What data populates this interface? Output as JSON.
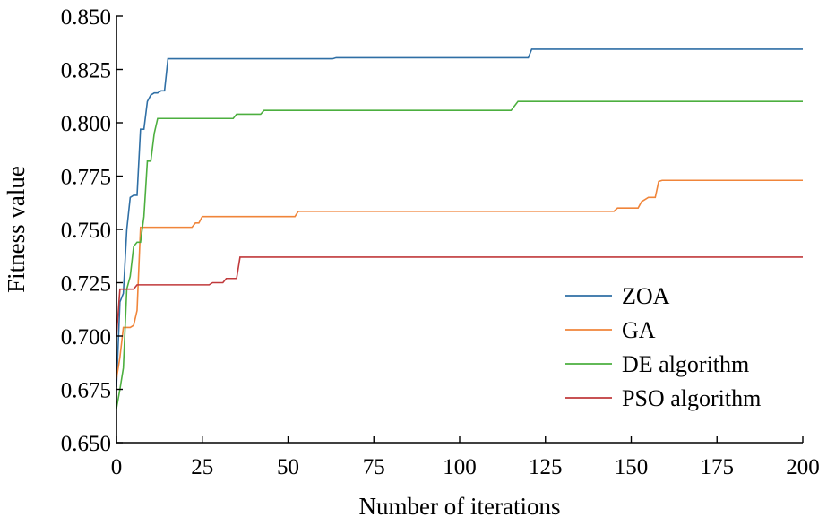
{
  "chart_data": {
    "type": "line",
    "title": "",
    "xlabel": "Number of iterations",
    "ylabel": "Fitness value",
    "xlim": [
      0,
      200
    ],
    "ylim": [
      0.65,
      0.85
    ],
    "xticks": [
      0,
      25,
      50,
      75,
      100,
      125,
      150,
      175,
      200
    ],
    "xtick_labels": [
      "0",
      "25",
      "50",
      "75",
      "100",
      "125",
      "150",
      "175",
      "200"
    ],
    "yticks": [
      0.65,
      0.675,
      0.7,
      0.725,
      0.75,
      0.775,
      0.8,
      0.825,
      0.85
    ],
    "ytick_labels": [
      "0.650",
      "0.675",
      "0.700",
      "0.725",
      "0.750",
      "0.775",
      "0.800",
      "0.825",
      "0.850"
    ],
    "grid": false,
    "legend_position": "bottom-right",
    "series": [
      {
        "name": "ZOA",
        "color": "#2f6fa5",
        "points": [
          [
            0,
            0.676
          ],
          [
            1,
            0.716
          ],
          [
            2,
            0.72
          ],
          [
            3,
            0.75
          ],
          [
            4,
            0.765
          ],
          [
            5,
            0.766
          ],
          [
            6,
            0.766
          ],
          [
            7,
            0.797
          ],
          [
            8,
            0.797
          ],
          [
            9,
            0.81
          ],
          [
            10,
            0.813
          ],
          [
            11,
            0.814
          ],
          [
            12,
            0.814
          ],
          [
            13,
            0.815
          ],
          [
            14,
            0.815
          ],
          [
            15,
            0.83
          ],
          [
            63,
            0.83
          ],
          [
            64,
            0.8305
          ],
          [
            120,
            0.8305
          ],
          [
            121,
            0.8345
          ],
          [
            200,
            0.8345
          ]
        ]
      },
      {
        "name": "GA",
        "color": "#f0853a",
        "points": [
          [
            0,
            0.68
          ],
          [
            1,
            0.69
          ],
          [
            2,
            0.704
          ],
          [
            4,
            0.704
          ],
          [
            5,
            0.705
          ],
          [
            6,
            0.712
          ],
          [
            7,
            0.751
          ],
          [
            22,
            0.751
          ],
          [
            23,
            0.753
          ],
          [
            24,
            0.753
          ],
          [
            25,
            0.756
          ],
          [
            52,
            0.756
          ],
          [
            53,
            0.7585
          ],
          [
            145,
            0.7585
          ],
          [
            146,
            0.76
          ],
          [
            152,
            0.76
          ],
          [
            153,
            0.763
          ],
          [
            155,
            0.765
          ],
          [
            157,
            0.765
          ],
          [
            158,
            0.7725
          ],
          [
            159,
            0.773
          ],
          [
            200,
            0.773
          ]
        ]
      },
      {
        "name": "DE algorithm",
        "color": "#4caf3f",
        "points": [
          [
            0,
            0.666
          ],
          [
            1,
            0.675
          ],
          [
            2,
            0.685
          ],
          [
            3,
            0.722
          ],
          [
            4,
            0.728
          ],
          [
            5,
            0.742
          ],
          [
            6,
            0.744
          ],
          [
            7,
            0.744
          ],
          [
            8,
            0.756
          ],
          [
            9,
            0.782
          ],
          [
            10,
            0.782
          ],
          [
            11,
            0.795
          ],
          [
            12,
            0.802
          ],
          [
            34,
            0.802
          ],
          [
            35,
            0.804
          ],
          [
            42,
            0.804
          ],
          [
            43,
            0.8058
          ],
          [
            115,
            0.8058
          ],
          [
            117,
            0.81
          ],
          [
            200,
            0.81
          ]
        ]
      },
      {
        "name": "PSO algorithm",
        "color": "#c0393b",
        "points": [
          [
            0,
            0.7
          ],
          [
            1,
            0.722
          ],
          [
            5,
            0.722
          ],
          [
            6,
            0.724
          ],
          [
            27,
            0.724
          ],
          [
            28,
            0.725
          ],
          [
            31,
            0.725
          ],
          [
            32,
            0.727
          ],
          [
            35,
            0.727
          ],
          [
            36,
            0.737
          ],
          [
            200,
            0.737
          ]
        ]
      }
    ]
  }
}
